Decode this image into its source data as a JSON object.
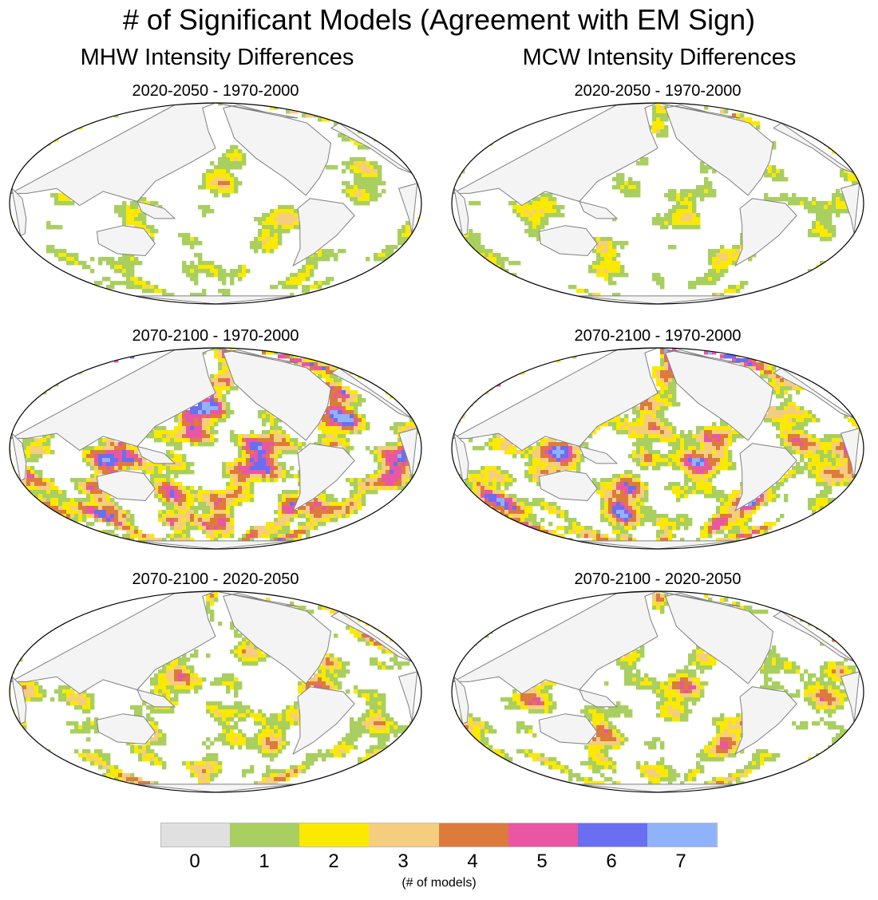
{
  "title": "# of Significant Models (Agreement with EM Sign)",
  "columns": [
    {
      "title": "MHW Intensity Differences"
    },
    {
      "title": "MCW Intensity Differences"
    }
  ],
  "panels": [
    {
      "period": "2020-2050 - 1970-2000",
      "seed": 11,
      "density": 0.35,
      "column": 0,
      "row": 0
    },
    {
      "period": "2020-2050 - 1970-2000",
      "seed": 23,
      "density": 0.33,
      "column": 1,
      "row": 0
    },
    {
      "period": "2070-2100 - 1970-2000",
      "seed": 37,
      "density": 0.85,
      "column": 0,
      "row": 1
    },
    {
      "period": "2070-2100 - 1970-2000",
      "seed": 41,
      "density": 0.8,
      "column": 1,
      "row": 1
    },
    {
      "period": "2070-2100 - 2020-2050",
      "seed": 53,
      "density": 0.55,
      "column": 0,
      "row": 2
    },
    {
      "period": "2070-2100 - 2020-2050",
      "seed": 67,
      "density": 0.55,
      "column": 1,
      "row": 2
    }
  ],
  "colorbar": {
    "levels": [
      {
        "label": "0",
        "color": "#e0e0e0"
      },
      {
        "label": "1",
        "color": "#a8cf5f"
      },
      {
        "label": "2",
        "color": "#fbe900"
      },
      {
        "label": "3",
        "color": "#f5cd7f"
      },
      {
        "label": "4",
        "color": "#dd7b3c"
      },
      {
        "label": "5",
        "color": "#e956a4"
      },
      {
        "label": "6",
        "color": "#6a6ef0"
      },
      {
        "label": "7",
        "color": "#8fb2fb"
      }
    ],
    "unit": "(# of models)"
  },
  "colors": {
    "land": "#f4f4f4",
    "ocean": "#ffffff",
    "coast": "#7f7f7f",
    "border": "#000000"
  }
}
